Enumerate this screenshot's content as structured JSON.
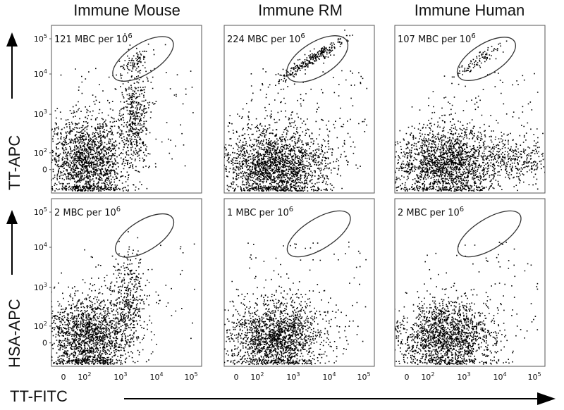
{
  "columns": [
    "Immune Mouse",
    "Immune RM",
    "Immune Human"
  ],
  "y_labels": [
    "TT-APC",
    "HSA-APC"
  ],
  "x_label": "TT-FITC",
  "chart_data": [
    {
      "type": "scatter",
      "row": 0,
      "col": 0,
      "annotation": "121 MBC per 10^6",
      "xlabel": "TT-FITC",
      "ylabel": "TT-APC",
      "ylim_ticks": [
        "0",
        "10^2",
        "10^3",
        "10^4",
        "10^5"
      ],
      "gate_count_per_million": 121
    },
    {
      "type": "scatter",
      "row": 0,
      "col": 1,
      "annotation": "224 MBC per 10^6",
      "xlabel": "TT-FITC",
      "ylabel": "TT-APC",
      "gate_count_per_million": 224
    },
    {
      "type": "scatter",
      "row": 0,
      "col": 2,
      "annotation": "107 MBC per 10^6",
      "xlabel": "TT-FITC",
      "ylabel": "TT-APC",
      "gate_count_per_million": 107
    },
    {
      "type": "scatter",
      "row": 1,
      "col": 0,
      "annotation": "2 MBC per 10^6",
      "xlabel": "TT-FITC",
      "ylabel": "HSA-APC",
      "ylim_ticks": [
        "0",
        "10^2",
        "10^3",
        "10^4",
        "10^5"
      ],
      "xlim_ticks": [
        "0",
        "10^2",
        "10^3",
        "10^4",
        "10^5"
      ],
      "gate_count_per_million": 2
    },
    {
      "type": "scatter",
      "row": 1,
      "col": 1,
      "annotation": "1 MBC per 10^6",
      "xlabel": "TT-FITC",
      "ylabel": "HSA-APC",
      "xlim_ticks": [
        "0",
        "10^2",
        "10^3",
        "10^4",
        "10^5"
      ],
      "gate_count_per_million": 1
    },
    {
      "type": "scatter",
      "row": 1,
      "col": 2,
      "annotation": "2 MBC per 10^6",
      "xlabel": "TT-FITC",
      "ylabel": "HSA-APC",
      "xlim_ticks": [
        "0",
        "10^2",
        "10^3",
        "10^4",
        "10^5"
      ],
      "gate_count_per_million": 2
    }
  ],
  "panels": [
    {
      "count": "121",
      "unit": "MBC per 10",
      "exp": "6"
    },
    {
      "count": "224",
      "unit": "MBC per 10",
      "exp": "6"
    },
    {
      "count": "107",
      "unit": "MBC per 10",
      "exp": "6"
    },
    {
      "count": "2",
      "unit": "MBC per 10",
      "exp": "6"
    },
    {
      "count": "1",
      "unit": "MBC per 10",
      "exp": "6"
    },
    {
      "count": "2",
      "unit": "MBC per 10",
      "exp": "6"
    }
  ],
  "ticks": {
    "zero": "0",
    "base": "10",
    "exps": [
      "2",
      "3",
      "4",
      "5"
    ]
  },
  "colors": {
    "dots": "#000000",
    "frame": "#555555",
    "gate": "#333333"
  }
}
